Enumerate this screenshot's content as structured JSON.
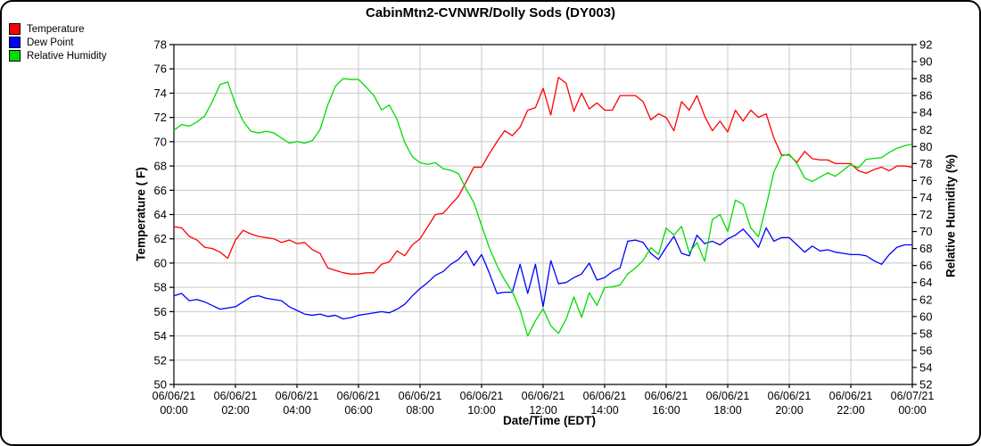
{
  "legend": {
    "items": [
      {
        "label": "Temperature",
        "color": "#ff0000"
      },
      {
        "label": "Dew Point",
        "color": "#0000ff"
      },
      {
        "label": "Relative Humidity",
        "color": "#00dd00"
      }
    ]
  },
  "chart_data": {
    "type": "line",
    "title": "CabinMtn2-CVNWR/Dolly Sods (DY003)",
    "xlabel": "Date/Time (EDT)",
    "ylabel_left": "Temperature ( F)",
    "ylabel_right": "Relative Humidity (%)",
    "ylim_left": [
      50,
      78
    ],
    "ylim_right": [
      52,
      92
    ],
    "x_range": [
      0,
      24
    ],
    "x_unit": "hours since 06/06/21 00:00 EDT",
    "x_start": 0,
    "x_step": 0.25,
    "grid": true,
    "legend_position": "top-left",
    "left_ticks": [
      78,
      76,
      74,
      72,
      70,
      68,
      66,
      64,
      62,
      60,
      58,
      56,
      54,
      52,
      50
    ],
    "right_ticks": [
      92,
      90,
      88,
      86,
      84,
      82,
      80,
      78,
      76,
      74,
      72,
      70,
      68,
      66,
      64,
      62,
      60,
      58,
      56,
      54,
      52
    ],
    "x_grid_hours": [
      2,
      4,
      6,
      8,
      10,
      12,
      14,
      16,
      18,
      20,
      22
    ],
    "x_ticks": [
      {
        "hour": 0,
        "date": "06/06/21",
        "time": "00:00"
      },
      {
        "hour": 2,
        "date": "06/06/21",
        "time": "02:00"
      },
      {
        "hour": 4,
        "date": "06/06/21",
        "time": "04:00"
      },
      {
        "hour": 6,
        "date": "06/06/21",
        "time": "06:00"
      },
      {
        "hour": 8,
        "date": "06/06/21",
        "time": "08:00"
      },
      {
        "hour": 10,
        "date": "06/06/21",
        "time": "10:00"
      },
      {
        "hour": 12,
        "date": "06/06/21",
        "time": "12:00"
      },
      {
        "hour": 14,
        "date": "06/06/21",
        "time": "14:00"
      },
      {
        "hour": 16,
        "date": "06/06/21",
        "time": "16:00"
      },
      {
        "hour": 18,
        "date": "06/06/21",
        "time": "18:00"
      },
      {
        "hour": 20,
        "date": "06/06/21",
        "time": "20:00"
      },
      {
        "hour": 22,
        "date": "06/06/21",
        "time": "22:00"
      },
      {
        "hour": 24,
        "date": "06/07/21",
        "time": "00:00"
      }
    ],
    "series": [
      {
        "name": "Temperature",
        "axis": "left",
        "color": "#ff0000",
        "values": [
          63.0,
          62.9,
          62.2,
          61.9,
          61.3,
          61.2,
          60.9,
          60.4,
          61.9,
          62.7,
          62.4,
          62.2,
          62.1,
          62.0,
          61.7,
          61.9,
          61.6,
          61.7,
          61.1,
          60.8,
          59.6,
          59.4,
          59.2,
          59.1,
          59.1,
          59.2,
          59.2,
          59.9,
          60.1,
          61.0,
          60.6,
          61.5,
          62.0,
          63.0,
          64.0,
          64.1,
          64.8,
          65.5,
          66.7,
          67.9,
          67.9,
          69.0,
          70.0,
          70.9,
          70.5,
          71.2,
          72.6,
          72.8,
          74.4,
          72.2,
          75.3,
          74.8,
          72.5,
          74.0,
          72.7,
          73.2,
          72.6,
          72.6,
          73.8,
          73.8,
          73.8,
          73.3,
          71.8,
          72.3,
          72.0,
          70.9,
          73.3,
          72.6,
          73.8,
          72.1,
          70.9,
          71.7,
          70.8,
          72.6,
          71.7,
          72.6,
          72.0,
          72.3,
          70.3,
          68.9,
          68.9,
          68.3,
          69.2,
          68.6,
          68.5,
          68.5,
          68.2,
          68.2,
          68.2,
          67.6,
          67.4,
          67.7,
          67.9,
          67.6,
          68.0,
          68.0,
          67.9
        ]
      },
      {
        "name": "Dew Point",
        "axis": "left",
        "color": "#0000ff",
        "values": [
          57.3,
          57.5,
          56.9,
          57.0,
          56.8,
          56.5,
          56.2,
          56.3,
          56.4,
          56.8,
          57.2,
          57.3,
          57.1,
          57.0,
          56.9,
          56.4,
          56.1,
          55.8,
          55.7,
          55.8,
          55.6,
          55.7,
          55.4,
          55.5,
          55.7,
          55.8,
          55.9,
          56.0,
          55.9,
          56.2,
          56.6,
          57.3,
          57.9,
          58.4,
          59.0,
          59.3,
          59.9,
          60.3,
          61.0,
          59.8,
          60.7,
          59.2,
          57.5,
          57.6,
          57.6,
          59.9,
          57.5,
          59.9,
          56.4,
          60.2,
          58.3,
          58.4,
          58.8,
          59.1,
          60.0,
          58.6,
          58.8,
          59.3,
          59.6,
          61.8,
          61.9,
          61.7,
          60.8,
          60.3,
          61.3,
          62.2,
          60.8,
          60.6,
          62.3,
          61.6,
          61.8,
          61.5,
          62.0,
          62.3,
          62.8,
          62.1,
          61.3,
          62.9,
          61.8,
          62.1,
          62.1,
          61.5,
          60.9,
          61.4,
          61.0,
          61.1,
          60.9,
          60.8,
          60.7,
          60.7,
          60.6,
          60.2,
          59.9,
          60.7,
          61.3,
          61.5,
          61.5
        ]
      },
      {
        "name": "Relative Humidity",
        "axis": "right",
        "color": "#00dd00",
        "values": [
          81.9,
          82.6,
          82.4,
          82.9,
          83.6,
          85.3,
          87.3,
          87.6,
          85.0,
          83.0,
          81.8,
          81.6,
          81.8,
          81.6,
          81.0,
          80.4,
          80.6,
          80.4,
          80.7,
          82.0,
          84.9,
          87.1,
          88.0,
          87.9,
          87.9,
          87.0,
          86.0,
          84.3,
          84.9,
          83.2,
          80.5,
          78.8,
          78.1,
          77.9,
          78.1,
          77.4,
          77.2,
          76.8,
          75.0,
          73.4,
          70.7,
          68.1,
          66.0,
          64.3,
          62.9,
          60.8,
          57.7,
          59.5,
          60.9,
          58.9,
          58.0,
          59.7,
          62.3,
          59.9,
          62.8,
          61.3,
          63.4,
          63.5,
          63.7,
          65.0,
          65.7,
          66.6,
          68.1,
          67.3,
          70.4,
          69.6,
          70.6,
          67.5,
          68.7,
          66.5,
          71.4,
          72.0,
          70.0,
          73.7,
          73.2,
          70.4,
          69.4,
          73.0,
          77.0,
          78.9,
          79.1,
          78.0,
          76.3,
          75.9,
          76.4,
          76.9,
          76.5,
          77.2,
          77.9,
          77.5,
          78.5,
          78.6,
          78.7,
          79.3,
          79.8,
          80.1,
          80.3
        ]
      }
    ]
  }
}
